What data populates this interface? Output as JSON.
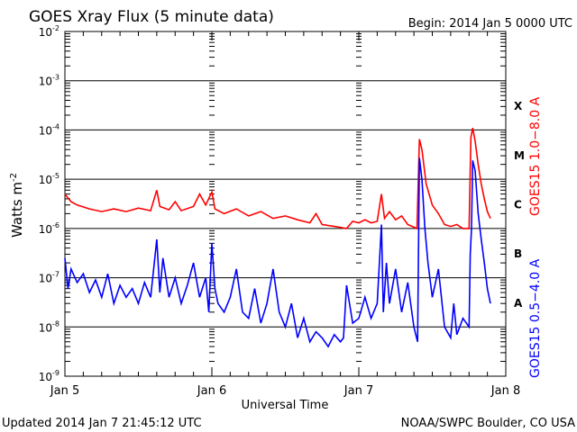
{
  "chart_data": {
    "type": "line",
    "title": "GOES Xray Flux (5 minute data)",
    "begin_label": "Begin:  2014 Jan 5 0000 UTC",
    "xlabel": "Universal Time",
    "ylabel": "Watts m",
    "ylabel_sup": "-2",
    "yscale": "log",
    "ylim": [
      1e-09,
      0.01
    ],
    "y_ticks": [
      {
        "base": "10",
        "exp": "-2"
      },
      {
        "base": "10",
        "exp": "-3"
      },
      {
        "base": "10",
        "exp": "-4"
      },
      {
        "base": "10",
        "exp": "-5"
      },
      {
        "base": "10",
        "exp": "-6"
      },
      {
        "base": "10",
        "exp": "-7"
      },
      {
        "base": "10",
        "exp": "-8"
      },
      {
        "base": "10",
        "exp": "-9"
      }
    ],
    "xlim_hours": [
      0,
      72
    ],
    "x_ticks": [
      {
        "hour": 0,
        "label": "Jan 5"
      },
      {
        "hour": 24,
        "label": "Jan 6"
      },
      {
        "hour": 48,
        "label": "Jan 7"
      },
      {
        "hour": 72,
        "label": "Jan 8"
      }
    ],
    "flare_classes": [
      {
        "label": "X",
        "exp": -3.5
      },
      {
        "label": "M",
        "exp": -4.5
      },
      {
        "label": "C",
        "exp": -5.5
      },
      {
        "label": "B",
        "exp": -6.5
      },
      {
        "label": "A",
        "exp": -7.5
      }
    ],
    "grid": "horizontal at decades",
    "series": [
      {
        "name": "GOES15 1.0−8.0 A",
        "color": "#ff0000",
        "points": [
          [
            0,
            5e-06
          ],
          [
            1,
            3.5e-06
          ],
          [
            2,
            3e-06
          ],
          [
            4,
            2.5e-06
          ],
          [
            6,
            2.2e-06
          ],
          [
            8,
            2.5e-06
          ],
          [
            10,
            2.2e-06
          ],
          [
            12,
            2.6e-06
          ],
          [
            14,
            2.3e-06
          ],
          [
            15,
            6e-06
          ],
          [
            15.5,
            2.8e-06
          ],
          [
            17,
            2.4e-06
          ],
          [
            18,
            3.5e-06
          ],
          [
            19,
            2.3e-06
          ],
          [
            21,
            2.8e-06
          ],
          [
            22,
            5e-06
          ],
          [
            23,
            3e-06
          ],
          [
            24,
            5.5e-06
          ],
          [
            24.5,
            2.5e-06
          ],
          [
            26,
            2e-06
          ],
          [
            28,
            2.5e-06
          ],
          [
            30,
            1.8e-06
          ],
          [
            32,
            2.2e-06
          ],
          [
            34,
            1.6e-06
          ],
          [
            36,
            1.8e-06
          ],
          [
            38,
            1.5e-06
          ],
          [
            40,
            1.3e-06
          ],
          [
            41,
            2e-06
          ],
          [
            42,
            1.2e-06
          ],
          [
            44,
            1.1e-06
          ],
          [
            46,
            1e-06
          ],
          [
            47,
            1.4e-06
          ],
          [
            48,
            1.3e-06
          ],
          [
            49,
            1.5e-06
          ],
          [
            50,
            1.3e-06
          ],
          [
            51,
            1.4e-06
          ],
          [
            51.7,
            5e-06
          ],
          [
            52.2,
            1.6e-06
          ],
          [
            53,
            2.2e-06
          ],
          [
            54,
            1.5e-06
          ],
          [
            55,
            1.8e-06
          ],
          [
            56,
            1.2e-06
          ],
          [
            57.5,
            1e-06
          ],
          [
            57.9,
            6.5e-05
          ],
          [
            58.3,
            4e-05
          ],
          [
            59,
            8e-06
          ],
          [
            60,
            3e-06
          ],
          [
            61,
            2e-06
          ],
          [
            62,
            1.2e-06
          ],
          [
            63,
            1.1e-06
          ],
          [
            64,
            1.2e-06
          ],
          [
            65,
            1e-06
          ],
          [
            66,
            1e-06
          ],
          [
            66.3,
            7e-05
          ],
          [
            66.6,
            0.00011
          ],
          [
            67,
            6e-05
          ],
          [
            67.5,
            2e-05
          ],
          [
            68,
            8e-06
          ],
          [
            68.5,
            4e-06
          ],
          [
            69,
            2.2e-06
          ],
          [
            69.5,
            1.6e-06
          ]
        ]
      },
      {
        "name": "GOES15 0.5−4.0 A",
        "color": "#0000ff",
        "points": [
          [
            0,
            2.5e-07
          ],
          [
            0.5,
            6e-08
          ],
          [
            1,
            1.5e-07
          ],
          [
            2,
            8e-08
          ],
          [
            3,
            1.2e-07
          ],
          [
            4,
            5e-08
          ],
          [
            5,
            9e-08
          ],
          [
            6,
            4e-08
          ],
          [
            7,
            1.2e-07
          ],
          [
            8,
            3e-08
          ],
          [
            9,
            7e-08
          ],
          [
            10,
            4e-08
          ],
          [
            11,
            6e-08
          ],
          [
            12,
            3e-08
          ],
          [
            13,
            8e-08
          ],
          [
            14,
            4e-08
          ],
          [
            15,
            6e-07
          ],
          [
            15.5,
            5e-08
          ],
          [
            16,
            2.5e-07
          ],
          [
            17,
            4e-08
          ],
          [
            18,
            1e-07
          ],
          [
            19,
            3e-08
          ],
          [
            20,
            7e-08
          ],
          [
            21,
            2e-07
          ],
          [
            22,
            4e-08
          ],
          [
            23,
            1e-07
          ],
          [
            23.5,
            2e-08
          ],
          [
            24,
            5e-07
          ],
          [
            24.5,
            6e-08
          ],
          [
            25,
            3e-08
          ],
          [
            26,
            2e-08
          ],
          [
            27,
            4e-08
          ],
          [
            28,
            1.5e-07
          ],
          [
            29,
            2e-08
          ],
          [
            30,
            1.5e-08
          ],
          [
            31,
            6e-08
          ],
          [
            32,
            1.2e-08
          ],
          [
            33,
            3e-08
          ],
          [
            34,
            1.5e-07
          ],
          [
            35,
            2e-08
          ],
          [
            36,
            1e-08
          ],
          [
            37,
            3e-08
          ],
          [
            38,
            6e-09
          ],
          [
            39,
            1.5e-08
          ],
          [
            40,
            5e-09
          ],
          [
            41,
            8e-09
          ],
          [
            42,
            6e-09
          ],
          [
            43,
            4e-09
          ],
          [
            44,
            7e-09
          ],
          [
            45,
            5e-09
          ],
          [
            45.5,
            6e-09
          ],
          [
            46,
            7e-08
          ],
          [
            47,
            1.2e-08
          ],
          [
            48,
            1.5e-08
          ],
          [
            49,
            4e-08
          ],
          [
            50,
            1.5e-08
          ],
          [
            51,
            3e-08
          ],
          [
            51.7,
            1.2e-06
          ],
          [
            52,
            2e-08
          ],
          [
            52.5,
            2e-07
          ],
          [
            53,
            3e-08
          ],
          [
            54,
            1.5e-07
          ],
          [
            55,
            2e-08
          ],
          [
            56,
            8e-08
          ],
          [
            57,
            1e-08
          ],
          [
            57.6,
            5e-09
          ],
          [
            57.9,
            2.7e-05
          ],
          [
            58.3,
            1e-05
          ],
          [
            58.8,
            1e-06
          ],
          [
            59.3,
            2e-07
          ],
          [
            60,
            4e-08
          ],
          [
            61,
            1.5e-07
          ],
          [
            62,
            1e-08
          ],
          [
            63,
            6e-09
          ],
          [
            63.5,
            3e-08
          ],
          [
            64,
            7e-09
          ],
          [
            65,
            1.5e-08
          ],
          [
            66,
            1e-08
          ],
          [
            66.2,
            3e-07
          ],
          [
            66.4,
            1e-06
          ],
          [
            66.6,
            2.4e-05
          ],
          [
            67,
            1.5e-05
          ],
          [
            67.5,
            2e-06
          ],
          [
            68,
            6e-07
          ],
          [
            68.5,
            2e-07
          ],
          [
            69,
            6e-08
          ],
          [
            69.5,
            3e-08
          ]
        ]
      }
    ]
  },
  "footer": {
    "updated": "Updated 2014 Jan  7 21:45:12 UTC",
    "source": "NOAA/SWPC Boulder, CO USA"
  }
}
